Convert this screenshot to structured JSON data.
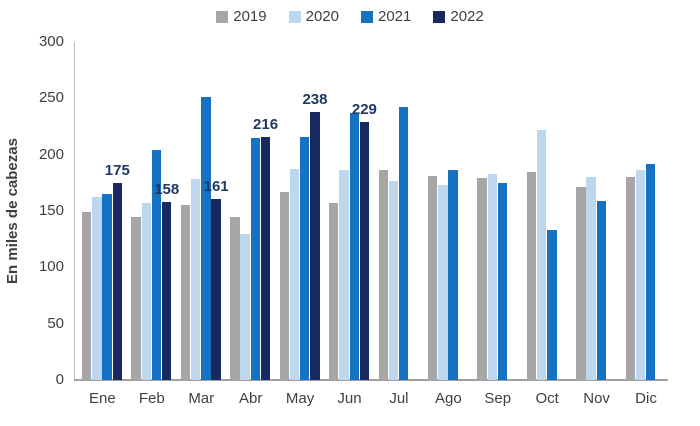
{
  "chart_data": {
    "type": "bar",
    "ylabel": "En miles de cabezas",
    "ylim": [
      0,
      300
    ],
    "y_ticks": [
      "300",
      "250",
      "200",
      "150",
      "100",
      "50",
      "0"
    ],
    "y_tick_values": [
      300,
      250,
      200,
      150,
      100,
      50,
      0
    ],
    "categories": [
      "Ene",
      "Feb",
      "Mar",
      "Abr",
      "May",
      "Jun",
      "Jul",
      "Ago",
      "Sep",
      "Oct",
      "Nov",
      "Dic"
    ],
    "grid": false,
    "legend_position": "top",
    "series": [
      {
        "name": "2019",
        "color": "#A6A6A6",
        "values": [
          149,
          145,
          155,
          145,
          167,
          157,
          186,
          181,
          179,
          185,
          171,
          180
        ]
      },
      {
        "name": "2020",
        "color": "#BDD7EE",
        "values": [
          162,
          157,
          178,
          130,
          187,
          186,
          177,
          173,
          183,
          222,
          180,
          186
        ]
      },
      {
        "name": "2021",
        "color": "#1572C2",
        "values": [
          165,
          204,
          251,
          215,
          216,
          237,
          242,
          186,
          175,
          133,
          159,
          192
        ]
      },
      {
        "name": "2022",
        "color": "#17295E",
        "values": [
          175,
          158,
          161,
          216,
          238,
          229,
          null,
          null,
          null,
          null,
          null,
          null
        ],
        "data_labels": [
          "175",
          "158",
          "161",
          "216",
          "238",
          "229",
          "",
          "",
          "",
          "",
          "",
          ""
        ],
        "data_label_color": "#1F3864"
      }
    ]
  }
}
